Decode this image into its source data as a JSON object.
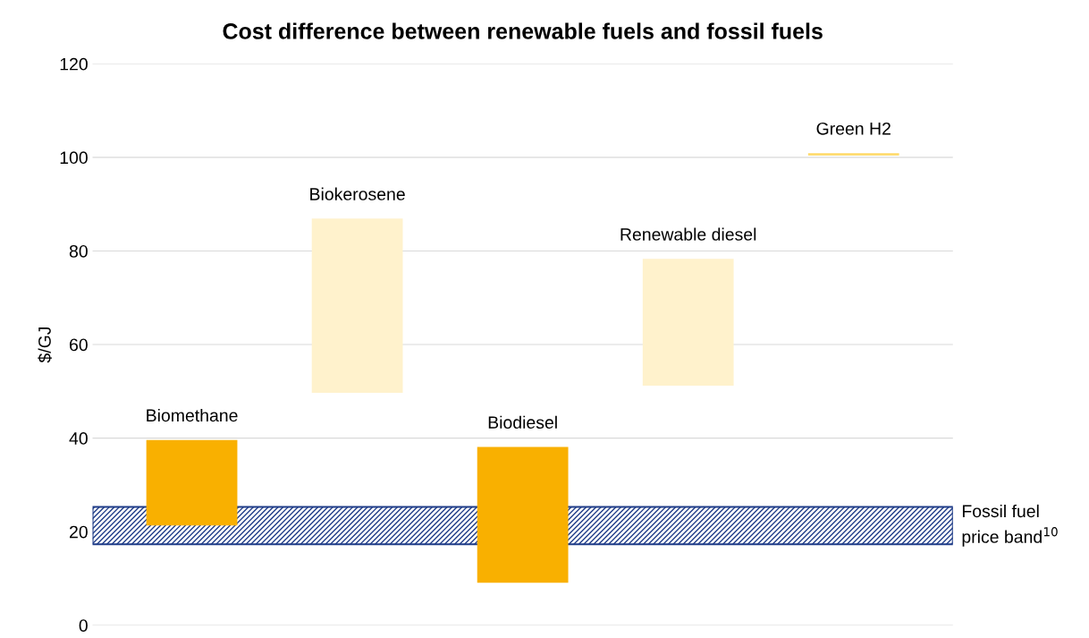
{
  "chart_data": {
    "type": "bar",
    "title": "Cost difference between renewable fuels and fossil fuels",
    "ylabel": "$/GJ",
    "categories": [
      "Biomethane",
      "Biokerosene",
      "Biodiesel",
      "Renewable diesel",
      "Green H2"
    ],
    "base": [
      21.3,
      49.7,
      9.1,
      51.2,
      100.4
    ],
    "values": [
      18.3,
      37.2,
      29,
      27.1,
      0.5
    ],
    "colors": [
      "#f9b000",
      "#fff2cc",
      "#f9b000",
      "#fff2cc",
      "#ffd966"
    ],
    "ylim": [
      0,
      120
    ],
    "yticks": [
      0,
      20,
      40,
      60,
      80,
      100,
      120
    ],
    "grid": "y",
    "bands": [
      {
        "axis": "y",
        "from": 17.3,
        "to": 25.3,
        "label": "Fossil fuel\nprice band$^{10}$",
        "color": "#1f3c88"
      }
    ]
  }
}
